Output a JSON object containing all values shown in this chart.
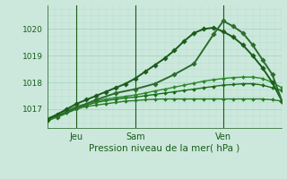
{
  "title": "Pression niveau de la mer( hPa )",
  "bg_color": "#cce8dc",
  "grid_color_major": "#a8d4c4",
  "grid_color_minor": "#b8dece",
  "plot_bg": "#cce8dc",
  "ylim": [
    1016.3,
    1020.9
  ],
  "yticks": [
    1017,
    1018,
    1019,
    1020
  ],
  "xtick_labels": [
    "Jeu",
    "Sam",
    "Ven"
  ],
  "dark_green": "#1a5c1a",
  "vline_color": "#2a7c2a",
  "lines": [
    {
      "x": [
        0,
        2,
        4,
        6,
        8,
        10,
        12,
        14,
        16,
        18,
        20,
        22,
        24,
        26,
        28,
        30,
        32,
        34,
        36,
        38,
        40,
        42,
        44,
        46,
        48
      ],
      "y": [
        1016.55,
        1016.7,
        1016.85,
        1017.0,
        1017.1,
        1017.15,
        1017.2,
        1017.25,
        1017.3,
        1017.32,
        1017.35,
        1017.37,
        1017.38,
        1017.38,
        1017.38,
        1017.38,
        1017.38,
        1017.38,
        1017.38,
        1017.38,
        1017.38,
        1017.38,
        1017.38,
        1017.35,
        1017.3
      ],
      "color": "#2a7c2a",
      "lw": 1.0,
      "marker": "D",
      "ms": 2.0
    },
    {
      "x": [
        0,
        2,
        4,
        6,
        8,
        10,
        12,
        14,
        16,
        18,
        20,
        22,
        24,
        26,
        28,
        30,
        32,
        34,
        36,
        38,
        40,
        42,
        44,
        46,
        48
      ],
      "y": [
        1016.6,
        1016.75,
        1016.9,
        1017.05,
        1017.15,
        1017.25,
        1017.32,
        1017.37,
        1017.42,
        1017.45,
        1017.5,
        1017.55,
        1017.6,
        1017.65,
        1017.7,
        1017.75,
        1017.8,
        1017.85,
        1017.9,
        1017.92,
        1017.95,
        1017.95,
        1017.9,
        1017.8,
        1017.7
      ],
      "color": "#1a6c1a",
      "lw": 1.0,
      "marker": "D",
      "ms": 2.0
    },
    {
      "x": [
        0,
        2,
        4,
        6,
        8,
        10,
        12,
        14,
        16,
        18,
        20,
        22,
        24,
        26,
        28,
        30,
        32,
        34,
        36,
        38,
        40,
        42,
        44,
        46,
        48
      ],
      "y": [
        1016.65,
        1016.8,
        1016.95,
        1017.1,
        1017.2,
        1017.3,
        1017.38,
        1017.43,
        1017.48,
        1017.53,
        1017.6,
        1017.68,
        1017.75,
        1017.82,
        1017.9,
        1017.97,
        1018.05,
        1018.1,
        1018.15,
        1018.18,
        1018.2,
        1018.2,
        1018.15,
        1018.0,
        1017.8
      ],
      "color": "#2a8c2a",
      "lw": 1.0,
      "marker": "D",
      "ms": 2.0
    },
    {
      "x": [
        0,
        2,
        4,
        6,
        8,
        10,
        12,
        14,
        16,
        18,
        20,
        22,
        24,
        26,
        28,
        30,
        32,
        34,
        36,
        38,
        40,
        42,
        44,
        46,
        48
      ],
      "y": [
        1016.6,
        1016.8,
        1017.0,
        1017.2,
        1017.35,
        1017.5,
        1017.65,
        1017.8,
        1017.95,
        1018.15,
        1018.4,
        1018.65,
        1018.9,
        1019.2,
        1019.55,
        1019.85,
        1020.0,
        1020.05,
        1019.9,
        1019.7,
        1019.4,
        1019.0,
        1018.55,
        1018.0,
        1017.3
      ],
      "color": "#1a5c1a",
      "lw": 1.4,
      "marker": "D",
      "ms": 2.8
    },
    {
      "x": [
        2,
        6,
        10,
        14,
        18,
        22,
        26,
        30,
        34,
        36,
        38,
        40,
        42,
        44,
        46,
        48
      ],
      "y": [
        1016.7,
        1017.05,
        1017.35,
        1017.6,
        1017.75,
        1017.95,
        1018.3,
        1018.7,
        1019.8,
        1020.3,
        1020.1,
        1019.85,
        1019.4,
        1018.85,
        1018.3,
        1017.3
      ],
      "color": "#2d6c2d",
      "lw": 1.4,
      "marker": "D",
      "ms": 2.8
    }
  ],
  "jeu_x": 6,
  "sam_x": 18,
  "ven_x": 36,
  "xmin": 0,
  "xmax": 48
}
